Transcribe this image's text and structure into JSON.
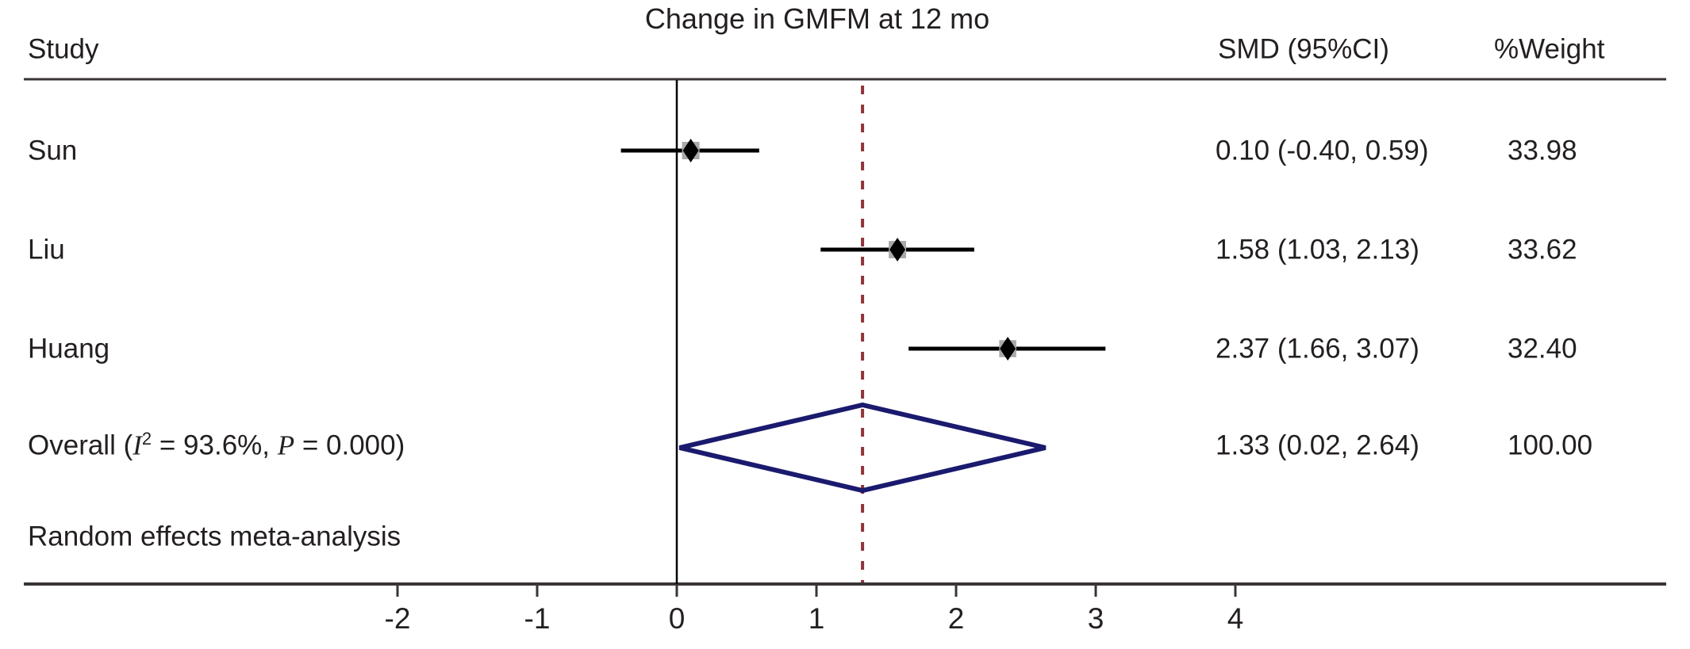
{
  "chart_data": {
    "type": "forest",
    "title": "Change in GMFM at 12 mo",
    "columns": {
      "study": "Study",
      "smd": "SMD (95%CI)",
      "weight": "%Weight"
    },
    "x_ticks": [
      -2,
      -1,
      0,
      1,
      2,
      3,
      4
    ],
    "zero_line_x": 0,
    "dashed_line_x": 1.33,
    "studies": [
      {
        "name": "Sun",
        "smd": 0.1,
        "ci_low": -0.4,
        "ci_high": 0.59,
        "smd_text": "0.10 (-0.40, 0.59)",
        "weight": 33.98,
        "weight_text": "33.98"
      },
      {
        "name": "Liu",
        "smd": 1.58,
        "ci_low": 1.03,
        "ci_high": 2.13,
        "smd_text": "1.58 (1.03, 2.13)",
        "weight": 33.62,
        "weight_text": "33.62"
      },
      {
        "name": "Huang",
        "smd": 2.37,
        "ci_low": 1.66,
        "ci_high": 3.07,
        "smd_text": "2.37 (1.66, 3.07)",
        "weight": 32.4,
        "weight_text": "32.40"
      }
    ],
    "overall": {
      "label_parts": [
        "Overall (",
        "I",
        "2",
        " = 93.6%, ",
        "P",
        " = 0.000)"
      ],
      "smd": 1.33,
      "ci_low": 0.02,
      "ci_high": 2.64,
      "smd_text": "1.33 (0.02, 2.64)",
      "weight_text": "100.00"
    },
    "note": "Random effects meta-analysis",
    "colors": {
      "text": "#231f20",
      "line": "#000000",
      "rule": "#3a3436",
      "weight_box": "#a9a9a9",
      "marker": "#000000",
      "diamond": "#1a1a6e",
      "dashed": "#90353b"
    }
  }
}
